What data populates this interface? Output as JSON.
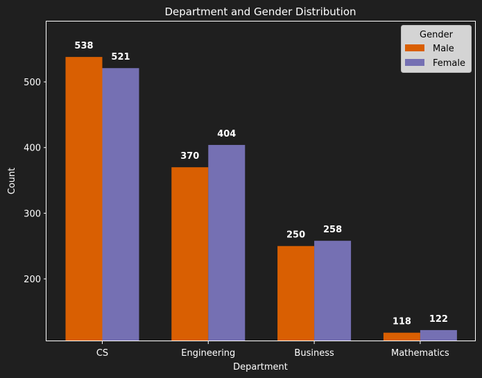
{
  "chart_data": {
    "type": "bar",
    "title": "Department and Gender Distribution",
    "xlabel": "Department",
    "ylabel": "Count",
    "categories": [
      "CS",
      "Engineering",
      "Business",
      "Mathematics"
    ],
    "series": [
      {
        "name": "Male",
        "values": [
          538,
          370,
          250,
          118
        ],
        "color": "#d95f02"
      },
      {
        "name": "Female",
        "values": [
          521,
          404,
          258,
          122
        ],
        "color": "#7570b3"
      }
    ],
    "ylim": [
      105,
      592
    ],
    "yticks": [
      200,
      300,
      400,
      500
    ],
    "legend": {
      "title": "Gender",
      "placement": "top-right"
    },
    "grid": false,
    "background": "#1f1f1f"
  }
}
